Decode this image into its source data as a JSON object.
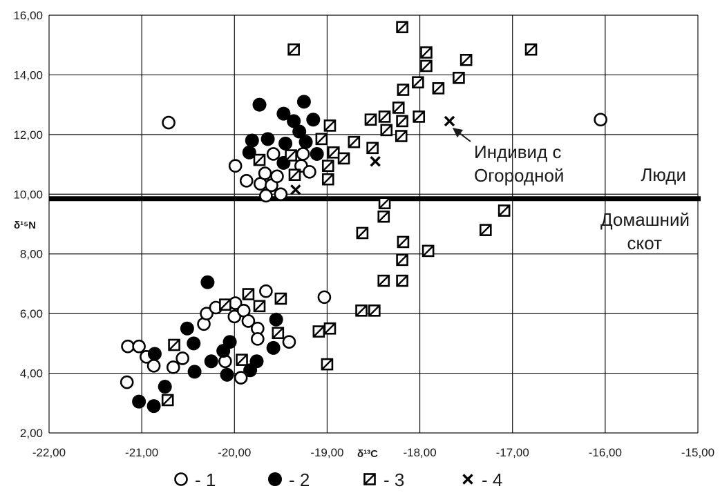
{
  "chart_data": {
    "type": "scatter",
    "title": "",
    "xlabel": "δ¹³C",
    "ylabel": "δ¹⁵N",
    "xlim": [
      -22,
      -15
    ],
    "ylim": [
      2,
      16
    ],
    "grid": true,
    "x_ticks": [
      "-22,00",
      "-21,00",
      "-20,00",
      "-19,00",
      "-18,00",
      "-17,00",
      "-16,00",
      "-15,00"
    ],
    "y_ticks": [
      "2,00",
      "4,00",
      "6,00",
      "8,00",
      "10,00",
      "12,00",
      "14,00",
      "16,00"
    ],
    "separator_y": 9.85,
    "annotations": {
      "upper_region": "Люди",
      "lower_region_line1": "Домашний",
      "lower_region_line2": "скот",
      "individual_line1": "Индивид с",
      "individual_line2": "Огородной",
      "individual_point": [
        -17.68,
        12.45
      ]
    },
    "legend": {
      "placement": "bottom",
      "entries": [
        {
          "marker": "open-circle",
          "label": "- 1"
        },
        {
          "marker": "filled-circle",
          "label": "- 2"
        },
        {
          "marker": "hatched-square",
          "label": "- 3"
        },
        {
          "marker": "cross",
          "label": "- 4"
        }
      ]
    },
    "series": [
      {
        "marker": "open-circle",
        "legend_index": 0,
        "points": [
          [
            -20.71,
            12.4
          ],
          [
            -16.05,
            12.5
          ],
          [
            -19.99,
            10.95
          ],
          [
            -19.87,
            10.45
          ],
          [
            -19.72,
            10.35
          ],
          [
            -19.66,
            9.95
          ],
          [
            -19.67,
            10.7
          ],
          [
            -19.6,
            10.3
          ],
          [
            -19.58,
            11.35
          ],
          [
            -19.54,
            10.6
          ],
          [
            -19.5,
            10.0
          ],
          [
            -19.28,
            10.95
          ],
          [
            -19.26,
            11.35
          ],
          [
            -19.19,
            10.75
          ],
          [
            -21.15,
            4.9
          ],
          [
            -21.03,
            4.9
          ],
          [
            -20.95,
            4.55
          ],
          [
            -20.87,
            4.25
          ],
          [
            -21.16,
            3.7
          ],
          [
            -20.66,
            4.2
          ],
          [
            -20.56,
            4.5
          ],
          [
            -20.33,
            5.65
          ],
          [
            -20.3,
            6.0
          ],
          [
            -20.2,
            6.2
          ],
          [
            -20.1,
            4.4
          ],
          [
            -20.0,
            5.9
          ],
          [
            -19.99,
            6.35
          ],
          [
            -19.9,
            6.1
          ],
          [
            -19.85,
            5.75
          ],
          [
            -19.93,
            3.85
          ],
          [
            -19.75,
            5.5
          ],
          [
            -19.75,
            5.15
          ],
          [
            -19.66,
            6.75
          ],
          [
            -19.41,
            5.05
          ],
          [
            -19.03,
            6.55
          ]
        ]
      },
      {
        "marker": "filled-circle",
        "legend_index": 1,
        "points": [
          [
            -19.73,
            13.0
          ],
          [
            -19.25,
            13.1
          ],
          [
            -19.47,
            12.7
          ],
          [
            -19.15,
            12.5
          ],
          [
            -19.36,
            12.45
          ],
          [
            -19.3,
            12.1
          ],
          [
            -19.45,
            11.7
          ],
          [
            -19.23,
            11.75
          ],
          [
            -19.84,
            11.4
          ],
          [
            -19.81,
            11.8
          ],
          [
            -19.64,
            11.85
          ],
          [
            -19.11,
            11.35
          ],
          [
            -19.47,
            11.05
          ],
          [
            -20.29,
            7.05
          ],
          [
            -20.51,
            5.5
          ],
          [
            -20.44,
            5.0
          ],
          [
            -20.86,
            4.65
          ],
          [
            -20.25,
            4.4
          ],
          [
            -20.43,
            4.05
          ],
          [
            -20.12,
            4.75
          ],
          [
            -20.05,
            5.05
          ],
          [
            -20.08,
            3.95
          ],
          [
            -19.83,
            4.1
          ],
          [
            -19.76,
            4.4
          ],
          [
            -19.55,
            5.8
          ],
          [
            -19.58,
            4.85
          ],
          [
            -20.75,
            3.55
          ],
          [
            -21.03,
            3.05
          ],
          [
            -20.87,
            2.9
          ]
        ]
      },
      {
        "marker": "hatched-square",
        "legend_index": 2,
        "points": [
          [
            -18.19,
            15.6
          ],
          [
            -19.36,
            14.85
          ],
          [
            -16.8,
            14.85
          ],
          [
            -17.93,
            14.75
          ],
          [
            -17.5,
            14.5
          ],
          [
            -17.93,
            14.3
          ],
          [
            -17.58,
            13.9
          ],
          [
            -18.02,
            13.75
          ],
          [
            -17.8,
            13.55
          ],
          [
            -18.18,
            13.5
          ],
          [
            -18.23,
            12.9
          ],
          [
            -18.01,
            12.6
          ],
          [
            -18.38,
            12.6
          ],
          [
            -18.53,
            12.5
          ],
          [
            -18.19,
            12.45
          ],
          [
            -18.36,
            12.15
          ],
          [
            -18.2,
            11.95
          ],
          [
            -18.97,
            12.3
          ],
          [
            -19.06,
            11.85
          ],
          [
            -18.93,
            11.4
          ],
          [
            -18.71,
            11.75
          ],
          [
            -18.51,
            11.55
          ],
          [
            -18.82,
            11.2
          ],
          [
            -19.39,
            11.3
          ],
          [
            -19.73,
            11.15
          ],
          [
            -18.99,
            10.95
          ],
          [
            -19.35,
            10.65
          ],
          [
            -18.99,
            10.5
          ],
          [
            -18.38,
            9.7
          ],
          [
            -18.39,
            9.25
          ],
          [
            -18.62,
            8.7
          ],
          [
            -18.18,
            8.4
          ],
          [
            -18.19,
            7.8
          ],
          [
            -17.91,
            8.1
          ],
          [
            -17.09,
            9.45
          ],
          [
            -17.29,
            8.8
          ],
          [
            -18.39,
            7.1
          ],
          [
            -18.19,
            7.1
          ],
          [
            -18.63,
            6.1
          ],
          [
            -18.49,
            6.1
          ],
          [
            -20.1,
            6.3
          ],
          [
            -19.85,
            6.65
          ],
          [
            -19.73,
            6.25
          ],
          [
            -19.5,
            6.5
          ],
          [
            -20.65,
            4.95
          ],
          [
            -19.53,
            5.35
          ],
          [
            -19.92,
            4.45
          ],
          [
            -19.09,
            5.4
          ],
          [
            -18.97,
            5.5
          ],
          [
            -19.0,
            4.3
          ],
          [
            -20.72,
            3.1
          ]
        ]
      },
      {
        "marker": "cross",
        "legend_index": 3,
        "points": [
          [
            -17.68,
            12.45
          ],
          [
            -18.48,
            11.1
          ],
          [
            -19.34,
            10.15
          ]
        ]
      }
    ]
  }
}
